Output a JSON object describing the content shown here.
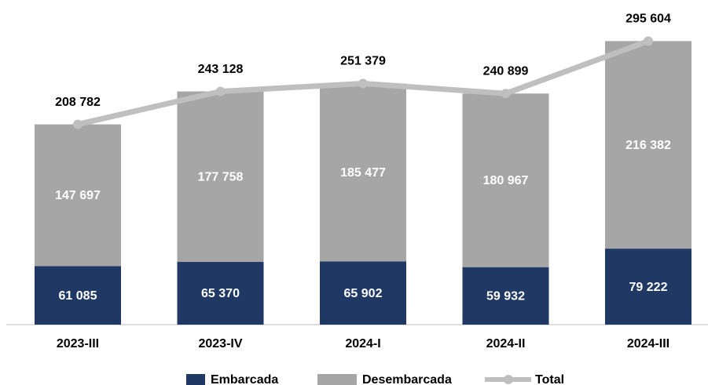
{
  "chart_data": {
    "type": "bar",
    "stacked": true,
    "categories": [
      "2023-III",
      "2023-IV",
      "2024-I",
      "2024-II",
      "2024-III"
    ],
    "series": [
      {
        "name": "Embarcada",
        "color": "#1f3864",
        "values": [
          61085,
          65370,
          65902,
          59932,
          79222
        ],
        "value_labels": [
          "61 085",
          "65 370",
          "65 902",
          "59 932",
          "79 222"
        ]
      },
      {
        "name": "Desembarcada",
        "color": "#a6a6a6",
        "values": [
          147697,
          177758,
          185477,
          180967,
          216382
        ],
        "value_labels": [
          "147 697",
          "177 758",
          "185 477",
          "180 967",
          "216 382"
        ]
      },
      {
        "name": "Total",
        "type": "line",
        "color": "#bfbfbf",
        "values": [
          208782,
          243128,
          251379,
          240899,
          295604
        ],
        "value_labels": [
          "208 782",
          "243 128",
          "251 379",
          "240 899",
          "295 604"
        ]
      }
    ],
    "ylim": [
      0,
      300000
    ]
  }
}
